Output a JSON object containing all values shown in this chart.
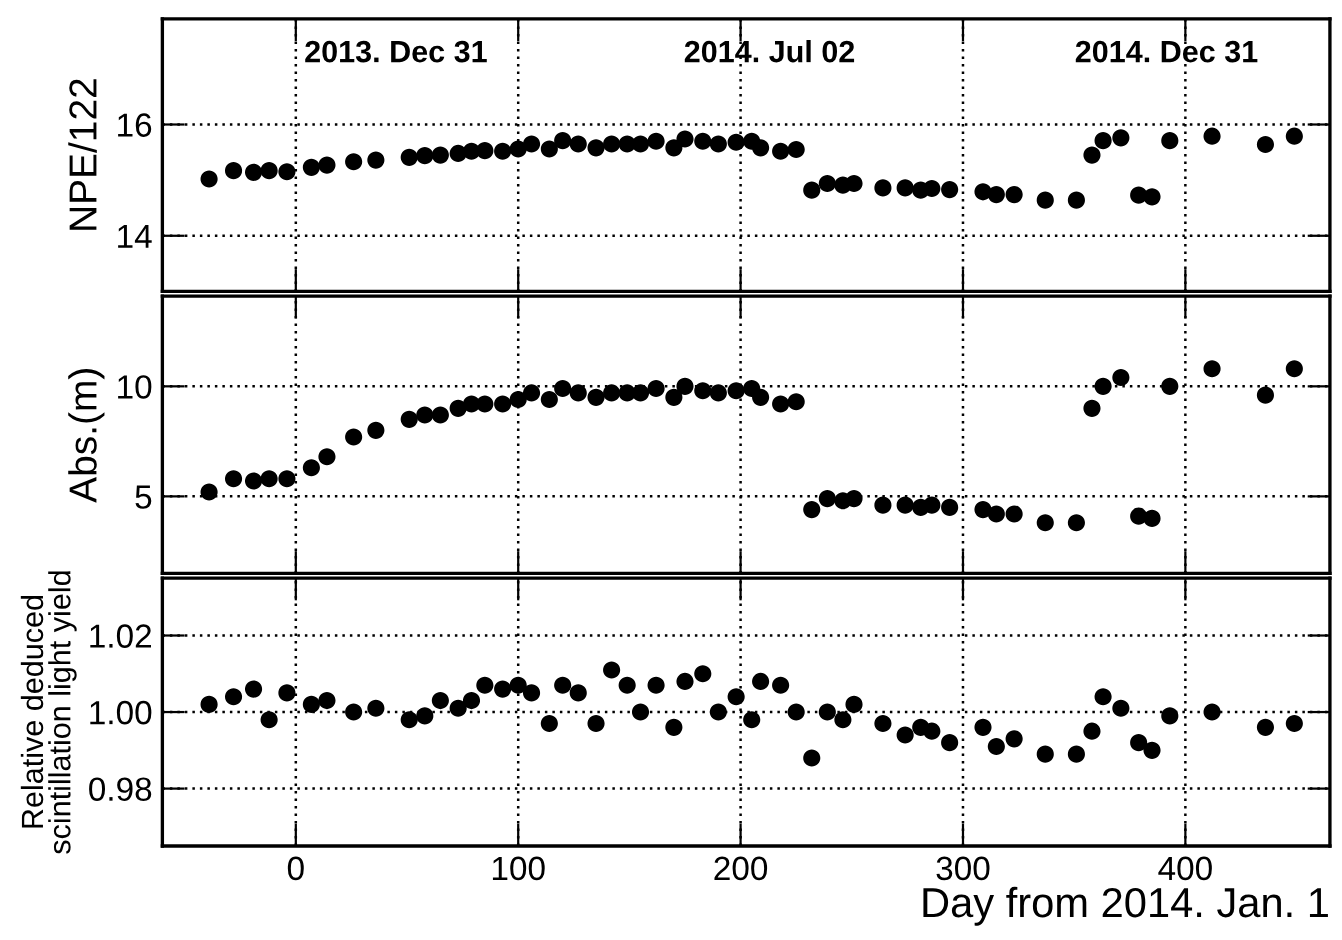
{
  "chart_data": [
    {
      "type": "scatter",
      "ylabel": "NPE/122",
      "xlim": [
        -60,
        465
      ],
      "xticks": [
        0,
        100,
        200,
        300,
        400
      ],
      "ylim": [
        13,
        17.9
      ],
      "yticks": [
        14,
        16
      ],
      "grid": true,
      "marker": "circle",
      "tick_labels": "y",
      "annotations": [
        "2013. Dec 31",
        "2014. Jul 02",
        "2014. Dec 31"
      ],
      "x": [
        -39,
        -28,
        -19,
        -12,
        -4,
        7,
        14,
        26,
        36,
        51,
        58,
        65,
        73,
        79,
        85,
        93,
        100,
        106,
        114,
        120,
        127,
        135,
        142,
        149,
        155,
        162,
        170,
        175,
        183,
        190,
        198,
        205,
        209,
        218,
        225,
        232,
        239,
        246,
        251,
        264,
        274,
        281,
        286,
        294,
        309,
        315,
        323,
        337,
        351,
        358,
        363,
        371,
        379,
        385,
        393,
        412,
        436,
        449
      ],
      "series": [
        {
          "color": "#000000",
          "values": [
            15.02,
            15.17,
            15.14,
            15.17,
            15.15,
            15.23,
            15.27,
            15.33,
            15.36,
            15.41,
            15.44,
            15.45,
            15.48,
            15.52,
            15.53,
            15.52,
            15.56,
            15.65,
            15.56,
            15.71,
            15.65,
            15.58,
            15.65,
            15.65,
            15.65,
            15.7,
            15.58,
            15.74,
            15.7,
            15.65,
            15.68,
            15.7,
            15.58,
            15.52,
            15.55,
            14.82,
            14.94,
            14.91,
            14.94,
            14.86,
            14.86,
            14.82,
            14.85,
            14.83,
            14.79,
            14.74,
            14.74,
            14.64,
            14.64,
            15.45,
            15.71,
            15.76,
            14.73,
            14.7,
            15.71,
            15.79,
            15.64,
            15.79
          ]
        }
      ]
    },
    {
      "type": "scatter",
      "ylabel": "Abs.(m)",
      "xlim": [
        -60,
        465
      ],
      "xticks": [
        0,
        100,
        200,
        300,
        400
      ],
      "ylim": [
        1.5,
        14.1
      ],
      "yticks": [
        5,
        10
      ],
      "grid": true,
      "marker": "circle",
      "tick_labels": "y",
      "x": [
        -39,
        -28,
        -19,
        -12,
        -4,
        7,
        14,
        26,
        36,
        51,
        58,
        65,
        73,
        79,
        85,
        93,
        100,
        106,
        114,
        120,
        127,
        135,
        142,
        149,
        155,
        162,
        170,
        175,
        183,
        190,
        198,
        205,
        209,
        218,
        225,
        232,
        239,
        246,
        251,
        264,
        274,
        281,
        286,
        294,
        309,
        315,
        323,
        337,
        351,
        358,
        363,
        371,
        379,
        385,
        393,
        412,
        436,
        449
      ],
      "series": [
        {
          "color": "#000000",
          "values": [
            5.2,
            5.8,
            5.7,
            5.8,
            5.8,
            6.3,
            6.8,
            7.7,
            8.0,
            8.5,
            8.7,
            8.7,
            9.0,
            9.2,
            9.2,
            9.2,
            9.4,
            9.7,
            9.4,
            9.9,
            9.7,
            9.5,
            9.7,
            9.7,
            9.7,
            9.9,
            9.5,
            10.0,
            9.8,
            9.7,
            9.8,
            9.9,
            9.5,
            9.2,
            9.3,
            4.4,
            4.9,
            4.8,
            4.9,
            4.6,
            4.6,
            4.5,
            4.6,
            4.5,
            4.4,
            4.2,
            4.2,
            3.8,
            3.8,
            9.0,
            10.0,
            10.4,
            4.1,
            4.0,
            10.0,
            10.8,
            9.6,
            10.8
          ]
        }
      ]
    },
    {
      "type": "scatter",
      "ylabel": "Relative deduced\nscintillation light yield",
      "xlabel": "Day from 2014. Jan. 1",
      "xlim": [
        -60,
        465
      ],
      "xticks": [
        0,
        100,
        200,
        300,
        400
      ],
      "ylim": [
        0.965,
        1.035
      ],
      "yticks": [
        {
          "value": 0.98,
          "label": "0.98"
        },
        {
          "value": 1.0,
          "label": "1.00"
        },
        {
          "value": 1.02,
          "label": "1.02"
        }
      ],
      "grid": true,
      "marker": "circle",
      "x": [
        -39,
        -28,
        -19,
        -12,
        -4,
        7,
        14,
        26,
        36,
        51,
        58,
        65,
        73,
        79,
        85,
        93,
        100,
        106,
        114,
        120,
        127,
        135,
        142,
        149,
        155,
        162,
        170,
        175,
        183,
        190,
        198,
        205,
        209,
        218,
        225,
        232,
        239,
        246,
        251,
        264,
        274,
        281,
        286,
        294,
        309,
        315,
        323,
        337,
        351,
        358,
        363,
        371,
        379,
        385,
        393,
        412,
        436,
        449
      ],
      "series": [
        {
          "color": "#000000",
          "values": [
            1.002,
            1.004,
            1.006,
            0.998,
            1.005,
            1.002,
            1.003,
            1.0,
            1.001,
            0.998,
            0.999,
            1.003,
            1.001,
            1.003,
            1.007,
            1.006,
            1.007,
            1.005,
            0.997,
            1.007,
            1.005,
            0.997,
            1.011,
            1.007,
            1.0,
            1.007,
            0.996,
            1.008,
            1.01,
            1.0,
            1.004,
            0.998,
            1.008,
            1.007,
            1.0,
            0.988,
            1.0,
            0.998,
            1.002,
            0.997,
            0.994,
            0.996,
            0.995,
            0.992,
            0.996,
            0.991,
            0.993,
            0.989,
            0.989,
            0.995,
            1.004,
            1.001,
            0.992,
            0.99,
            0.999,
            1.0,
            0.996,
            0.997
          ]
        }
      ]
    }
  ]
}
